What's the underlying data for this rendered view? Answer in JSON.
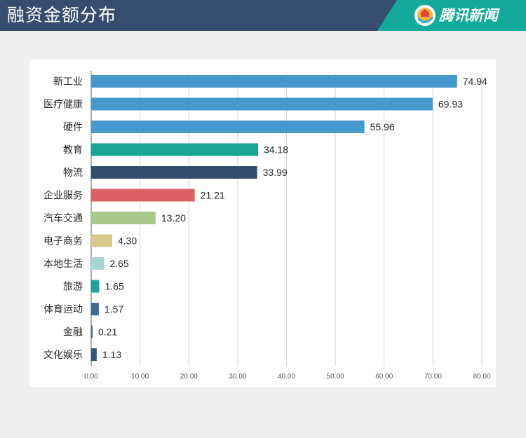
{
  "header": {
    "title": "融资金额分布",
    "brand": "腾讯新闻",
    "brand_icon": "tencent-news-logo-icon",
    "background_color": "#364e6e",
    "brand_color": "#13a99b"
  },
  "chart_data": {
    "type": "bar",
    "orientation": "horizontal",
    "categories": [
      "新工业",
      "医疗健康",
      "硬件",
      "教育",
      "物流",
      "企业服务",
      "汽车交通",
      "电子商务",
      "本地生活",
      "旅游",
      "体育运动",
      "金融",
      "文化娱乐"
    ],
    "values": [
      74.94,
      69.93,
      55.96,
      34.18,
      33.99,
      21.21,
      13.2,
      4.3,
      2.65,
      1.65,
      1.57,
      0.21,
      1.13
    ],
    "value_labels": [
      "74.94",
      "69.93",
      "55.96",
      "34.18",
      "33.99",
      "21.21",
      "13.20",
      "4.30",
      "2.65",
      "1.65",
      "1.57",
      "0.21",
      "1.13"
    ],
    "colors": [
      "#4699cd",
      "#4699cd",
      "#4699cd",
      "#1aa597",
      "#344c6c",
      "#dd6066",
      "#a7c98c",
      "#d8c88a",
      "#a7d7d4",
      "#1aa597",
      "#3d6d95",
      "#3d6d95",
      "#2f5578"
    ],
    "xlim": [
      0,
      80
    ],
    "x_ticks": [
      "0.00",
      "10.00",
      "20.00",
      "30.00",
      "40.00",
      "50.00",
      "60.00",
      "70.00",
      "80.00"
    ],
    "grid": true,
    "title": "",
    "xlabel": "",
    "ylabel": ""
  }
}
